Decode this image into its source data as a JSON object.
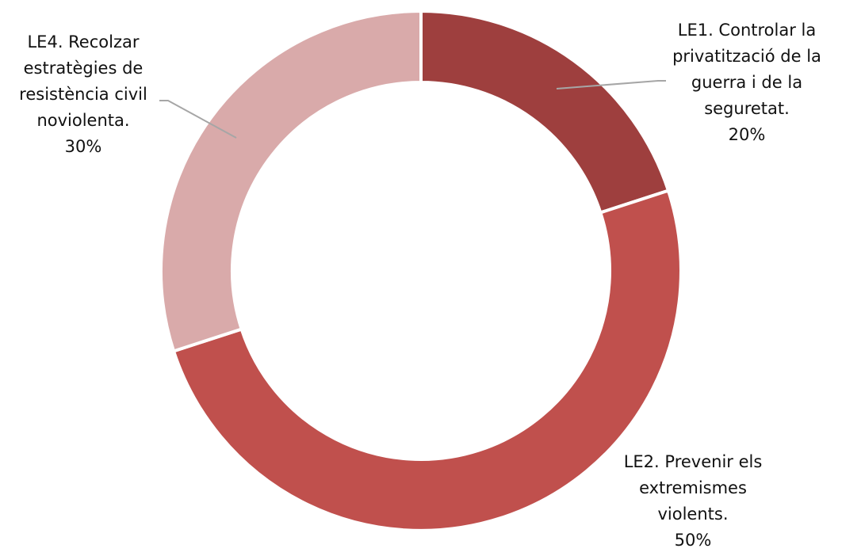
{
  "chart_data": {
    "type": "pie",
    "variant": "donut",
    "title": "",
    "slices": [
      {
        "label_lines": [
          "LE1. Controlar la",
          "privatització de la",
          "guerra i de la",
          "seguretat."
        ],
        "value": 20,
        "value_label": "20%",
        "color": "#9E3F3E"
      },
      {
        "label_lines": [
          "LE2. Prevenir els",
          "extremismes",
          "violents."
        ],
        "value": 50,
        "value_label": "50%",
        "color": "#C0504D"
      },
      {
        "label_lines": [
          "LE4.  Recolzar",
          "estratègies de",
          "resistència civil",
          "noviolenta."
        ],
        "value": 30,
        "value_label": "30%",
        "color": "#D9AAAA"
      }
    ],
    "legend": "none",
    "leader_line_color": "#A6A6A6"
  }
}
